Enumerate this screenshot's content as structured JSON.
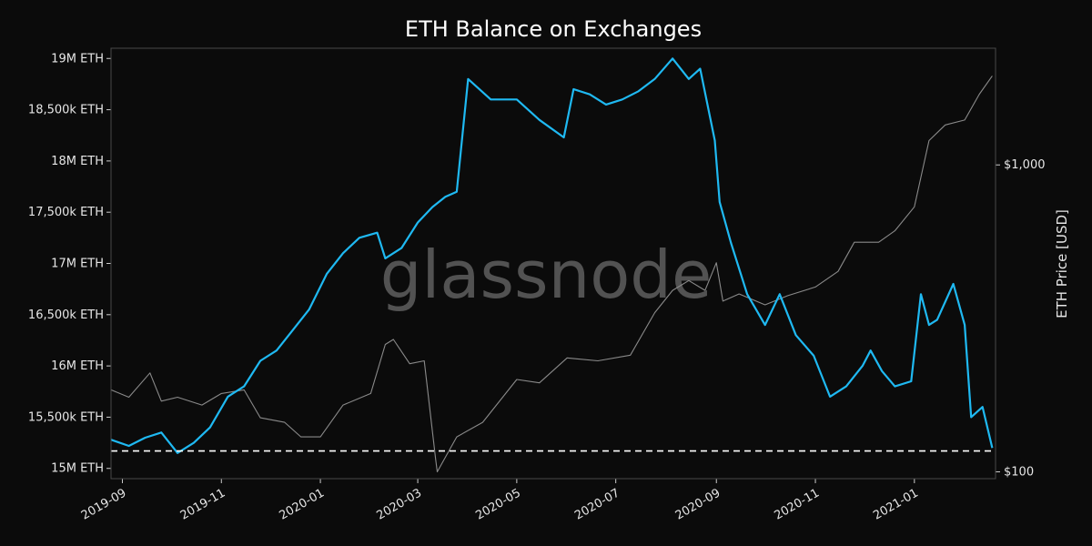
{
  "chart_data": {
    "type": "line",
    "title": "ETH Balance on Exchanges",
    "xlabel": "",
    "ylabel": "",
    "y2label": "ETH Price [USD]",
    "watermark": "glassnode",
    "x_range": [
      "2019-08-25",
      "2021-02-20"
    ],
    "x_ticks": [
      {
        "date": "2019-09-01",
        "label": "2019-09"
      },
      {
        "date": "2019-11-01",
        "label": "2019-11"
      },
      {
        "date": "2020-01-01",
        "label": "2020-01"
      },
      {
        "date": "2020-03-01",
        "label": "2020-03"
      },
      {
        "date": "2020-05-01",
        "label": "2020-05"
      },
      {
        "date": "2020-07-01",
        "label": "2020-07"
      },
      {
        "date": "2020-09-01",
        "label": "2020-09"
      },
      {
        "date": "2020-11-01",
        "label": "2020-11"
      },
      {
        "date": "2021-01-01",
        "label": "2021-01"
      }
    ],
    "y_left": {
      "ylim": [
        14900000,
        19100000
      ],
      "ticks": [
        {
          "value": 15000000,
          "label": "15M ETH"
        },
        {
          "value": 15500000,
          "label": "15,500k ETH"
        },
        {
          "value": 16000000,
          "label": "16M ETH"
        },
        {
          "value": 16500000,
          "label": "16,500k ETH"
        },
        {
          "value": 17000000,
          "label": "17M ETH"
        },
        {
          "value": 17500000,
          "label": "17,500k ETH"
        },
        {
          "value": 18000000,
          "label": "18M ETH"
        },
        {
          "value": 18500000,
          "label": "18,500k ETH"
        },
        {
          "value": 19000000,
          "label": "19M ETH"
        }
      ]
    },
    "y_right": {
      "scale": "log",
      "ylim": [
        95,
        2400
      ],
      "ticks": [
        {
          "value": 100,
          "label": "$100"
        },
        {
          "value": 1000,
          "label": "$1,000"
        }
      ]
    },
    "reference_line": {
      "value": 15170000,
      "style": "dashed",
      "color": "#ffffff"
    },
    "grid": false,
    "series": [
      {
        "axis": "left",
        "color": "#1fb9f2",
        "x": [
          "2019-08-25",
          "2019-09-05",
          "2019-09-15",
          "2019-09-25",
          "2019-10-05",
          "2019-10-15",
          "2019-10-25",
          "2019-11-05",
          "2019-11-15",
          "2019-11-25",
          "2019-12-05",
          "2019-12-15",
          "2019-12-25",
          "2020-01-05",
          "2020-01-15",
          "2020-01-25",
          "2020-02-05",
          "2020-02-10",
          "2020-02-20",
          "2020-03-01",
          "2020-03-10",
          "2020-03-18",
          "2020-03-25",
          "2020-04-01",
          "2020-04-15",
          "2020-05-01",
          "2020-05-15",
          "2020-05-30",
          "2020-06-05",
          "2020-06-15",
          "2020-06-25",
          "2020-07-05",
          "2020-07-15",
          "2020-07-25",
          "2020-08-05",
          "2020-08-15",
          "2020-08-22",
          "2020-08-31",
          "2020-09-03",
          "2020-09-10",
          "2020-09-20",
          "2020-10-01",
          "2020-10-10",
          "2020-10-20",
          "2020-10-31",
          "2020-11-10",
          "2020-11-20",
          "2020-11-30",
          "2020-12-05",
          "2020-12-12",
          "2020-12-20",
          "2020-12-30",
          "2021-01-05",
          "2021-01-10",
          "2021-01-15",
          "2021-01-25",
          "2021-02-01",
          "2021-02-05",
          "2021-02-12",
          "2021-02-18"
        ],
        "values": [
          15280000,
          15220000,
          15300000,
          15350000,
          15150000,
          15250000,
          15400000,
          15700000,
          15800000,
          16050000,
          16150000,
          16350000,
          16550000,
          16900000,
          17100000,
          17250000,
          17300000,
          17050000,
          17150000,
          17400000,
          17550000,
          17650000,
          17700000,
          18800000,
          18600000,
          18600000,
          18400000,
          18230000,
          18700000,
          18650000,
          18550000,
          18600000,
          18680000,
          18800000,
          19000000,
          18800000,
          18900000,
          18200000,
          17600000,
          17200000,
          16700000,
          16400000,
          16700000,
          16300000,
          16100000,
          15700000,
          15800000,
          16000000,
          16150000,
          15950000,
          15800000,
          15850000,
          16700000,
          16400000,
          16450000,
          16800000,
          16400000,
          15500000,
          15600000,
          15200000
        ]
      },
      {
        "axis": "right",
        "color": "#8a8a8a",
        "x": [
          "2019-08-25",
          "2019-09-05",
          "2019-09-18",
          "2019-09-25",
          "2019-10-05",
          "2019-10-20",
          "2019-11-01",
          "2019-11-15",
          "2019-11-25",
          "2019-12-10",
          "2019-12-20",
          "2020-01-01",
          "2020-01-15",
          "2020-02-01",
          "2020-02-10",
          "2020-02-15",
          "2020-02-25",
          "2020-03-05",
          "2020-03-12",
          "2020-03-13",
          "2020-03-25",
          "2020-04-10",
          "2020-05-01",
          "2020-05-15",
          "2020-06-01",
          "2020-06-20",
          "2020-07-10",
          "2020-07-25",
          "2020-08-05",
          "2020-08-15",
          "2020-08-25",
          "2020-09-01",
          "2020-09-05",
          "2020-09-15",
          "2020-10-01",
          "2020-10-15",
          "2020-11-01",
          "2020-11-15",
          "2020-11-25",
          "2020-12-10",
          "2020-12-20",
          "2021-01-01",
          "2021-01-10",
          "2021-01-20",
          "2021-02-01",
          "2021-02-10",
          "2021-02-18"
        ],
        "values": [
          185,
          175,
          210,
          170,
          175,
          165,
          180,
          185,
          150,
          145,
          130,
          130,
          165,
          180,
          260,
          270,
          225,
          230,
          110,
          100,
          130,
          145,
          200,
          195,
          235,
          230,
          240,
          330,
          390,
          420,
          390,
          480,
          360,
          380,
          350,
          375,
          400,
          450,
          560,
          560,
          610,
          730,
          1200,
          1350,
          1400,
          1700,
          1950
        ]
      }
    ]
  }
}
